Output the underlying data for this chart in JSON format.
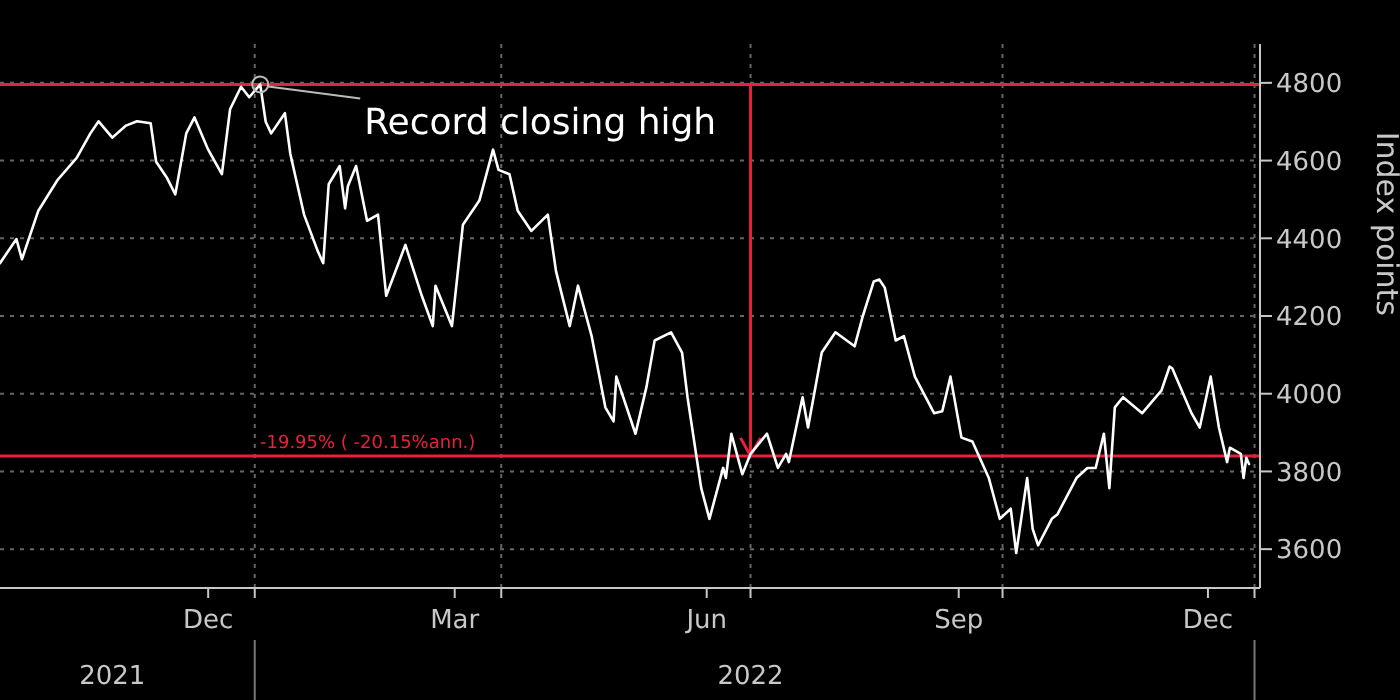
{
  "chart_data": {
    "type": "line",
    "ylabel": "Index points",
    "x": [
      "2021-09-30",
      "2021-10-06",
      "2021-10-08",
      "2021-10-14",
      "2021-10-21",
      "2021-10-28",
      "2021-11-02",
      "2021-11-05",
      "2021-11-10",
      "2021-11-15",
      "2021-11-19",
      "2021-11-24",
      "2021-11-26",
      "2021-11-30",
      "2021-12-03",
      "2021-12-07",
      "2021-12-10",
      "2021-12-15",
      "2021-12-20",
      "2021-12-23",
      "2021-12-27",
      "2021-12-30",
      "2022-01-03",
      "2022-01-05",
      "2022-01-07",
      "2022-01-12",
      "2022-01-14",
      "2022-01-19",
      "2022-01-24",
      "2022-01-26",
      "2022-01-28",
      "2022-02-01",
      "2022-02-03",
      "2022-02-04",
      "2022-02-07",
      "2022-02-11",
      "2022-02-15",
      "2022-02-18",
      "2022-02-25",
      "2022-03-03",
      "2022-03-07",
      "2022-03-08",
      "2022-03-14",
      "2022-03-18",
      "2022-03-24",
      "2022-03-29",
      "2022-03-31",
      "2022-04-04",
      "2022-04-07",
      "2022-04-12",
      "2022-04-18",
      "2022-04-21",
      "2022-04-26",
      "2022-04-29",
      "2022-05-04",
      "2022-05-09",
      "2022-05-12",
      "2022-05-13",
      "2022-05-20",
      "2022-05-24",
      "2022-05-27",
      "2022-06-02",
      "2022-06-06",
      "2022-06-08",
      "2022-06-13",
      "2022-06-16",
      "2022-06-21",
      "2022-06-22",
      "2022-06-24",
      "2022-06-28",
      "2022-07-01",
      "2022-07-07",
      "2022-07-11",
      "2022-07-14",
      "2022-07-15",
      "2022-07-20",
      "2022-07-22",
      "2022-07-27",
      "2022-08-01",
      "2022-08-08",
      "2022-08-11",
      "2022-08-15",
      "2022-08-17",
      "2022-08-19",
      "2022-08-23",
      "2022-08-26",
      "2022-08-30",
      "2022-09-06",
      "2022-09-09",
      "2022-09-12",
      "2022-09-16",
      "2022-09-20",
      "2022-09-26",
      "2022-09-30",
      "2022-10-04",
      "2022-10-06",
      "2022-10-10",
      "2022-10-12",
      "2022-10-14",
      "2022-10-19",
      "2022-10-21",
      "2022-10-28",
      "2022-11-01",
      "2022-11-04",
      "2022-11-07",
      "2022-11-09",
      "2022-11-11",
      "2022-11-14",
      "2022-11-21",
      "2022-11-28",
      "2022-12-01",
      "2022-12-02",
      "2022-12-09",
      "2022-12-12",
      "2022-12-16",
      "2022-12-19",
      "2022-12-22",
      "2022-12-23",
      "2022-12-27",
      "2022-12-28",
      "2022-12-29",
      "2022-12-30"
    ],
    "series": [
      {
        "color": "#ffffff",
        "values": [
          4336,
          4398,
          4346,
          4471,
          4550,
          4607,
          4670,
          4701,
          4659,
          4690,
          4701,
          4696,
          4597,
          4555,
          4513,
          4670,
          4711,
          4628,
          4565,
          4732,
          4790,
          4763,
          4796,
          4700,
          4670,
          4722,
          4617,
          4461,
          4367,
          4336,
          4539,
          4586,
          4477,
          4534,
          4586,
          4445,
          4461,
          4252,
          4383,
          4252,
          4174,
          4278,
          4174,
          4435,
          4497,
          4628,
          4576,
          4565,
          4471,
          4419,
          4461,
          4315,
          4174,
          4278,
          4148,
          3965,
          3929,
          4044,
          3897,
          4017,
          4137,
          4158,
          4106,
          3991,
          3757,
          3678,
          3809,
          3783,
          3897,
          3793,
          3845,
          3897,
          3809,
          3845,
          3824,
          3991,
          3913,
          4106,
          4158,
          4122,
          4200,
          4289,
          4294,
          4273,
          4137,
          4148,
          4044,
          3950,
          3955,
          4044,
          3887,
          3877,
          3783,
          3678,
          3704,
          3590,
          3783,
          3652,
          3610,
          3678,
          3689,
          3783,
          3809,
          3809,
          3897,
          3757,
          3965,
          3991,
          3950,
          4008,
          4070,
          4065,
          3950,
          3913,
          4044,
          3913,
          3824,
          3861,
          3845,
          3783,
          3835,
          3819
        ]
      }
    ],
    "xlim": [
      "2021-09-30",
      "2023-01-03"
    ],
    "xticks": [
      {
        "value": "2021-12-15",
        "label": "Dec"
      },
      {
        "value": "2022-01-01",
        "label": null
      },
      {
        "value": "2022-03-15",
        "label": "Mar"
      },
      {
        "value": "2022-04-01",
        "label": null
      },
      {
        "value": "2022-06-15",
        "label": "Jun"
      },
      {
        "value": "2022-07-01",
        "label": null
      },
      {
        "value": "2022-09-15",
        "label": "Sep"
      },
      {
        "value": "2022-10-01",
        "label": null
      },
      {
        "value": "2022-12-15",
        "label": "Dec"
      },
      {
        "value": "2023-01-01",
        "label": null
      }
    ],
    "x2lim": [
      "2021-09-30",
      "2023-01-03"
    ],
    "x2ticks": [
      {
        "value": "2021-11-10",
        "label": "2021"
      },
      {
        "value": "2022-01-01",
        "label": null
      },
      {
        "value": "2022-07-01",
        "label": "2022"
      },
      {
        "value": "2023-01-01",
        "label": null
      }
    ],
    "ylim": [
      3500,
      4900
    ],
    "yticks": [
      3600,
      3800,
      4000,
      4200,
      4400,
      4600,
      4800
    ],
    "grid": true,
    "ref_lines": [
      {
        "axis": "y",
        "value": 4796,
        "color": "#e8203a"
      },
      {
        "axis": "y",
        "value": 3840,
        "label": "-19.95% ( -20.15%ann.)",
        "color": "#e8203a"
      },
      {
        "axis": "x",
        "value": "2022-07-01",
        "color": "#e8203a"
      }
    ],
    "annotations": [
      {
        "text": "Record closing high",
        "x": "2022-01-03",
        "y": 4796
      }
    ]
  }
}
